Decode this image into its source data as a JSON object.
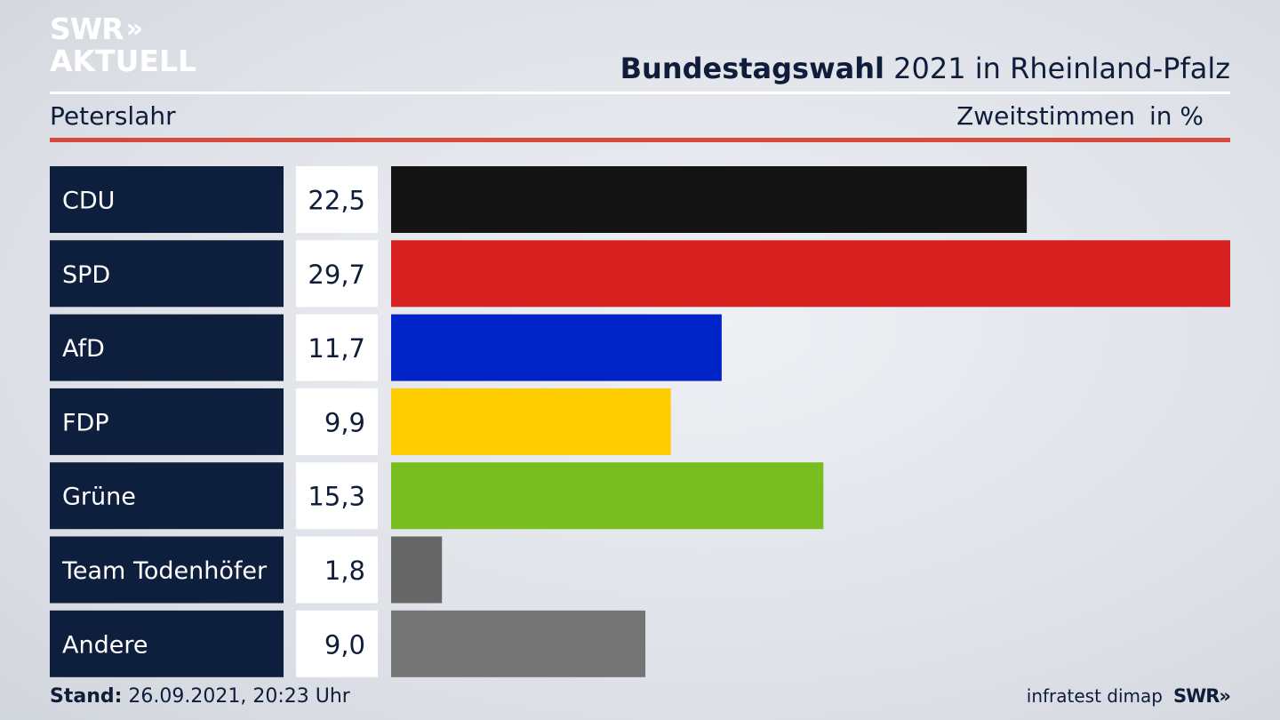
{
  "logo": {
    "line1": "SWR",
    "line1_chevrons": "»",
    "line2": "AKTUELL"
  },
  "header": {
    "title_bold": "Bundestagswahl",
    "title_rest": " 2021 in Rheinland-Pfalz",
    "location": "Peterslahr",
    "vote_type": "Zweitstimmen",
    "unit": "in %"
  },
  "footer": {
    "stand_label": "Stand:",
    "stand_value": " 26.09.2021, 20:23 Uhr",
    "source": "infratest dimap",
    "brand": "SWR»"
  },
  "colors": {
    "label_bg": "#0e1e3d",
    "value_bg": "#ffffff",
    "accent_red": "#d64a3e"
  },
  "chart_data": {
    "type": "bar",
    "orientation": "horizontal",
    "title": "Bundestagswahl 2021 in Rheinland-Pfalz",
    "subtitle": "Peterslahr",
    "xlabel": "Zweitstimmen in %",
    "categories": [
      "CDU",
      "SPD",
      "AfD",
      "FDP",
      "Grüne",
      "Team Todenhöfer",
      "Andere"
    ],
    "values": [
      22.5,
      29.7,
      11.7,
      9.9,
      15.3,
      1.8,
      9.0
    ],
    "value_labels": [
      "22,5",
      "29,7",
      "11,7",
      "9,9",
      "15,3",
      "1,8",
      "9,0"
    ],
    "bar_colors": [
      "#141414",
      "#d72020",
      "#0023c8",
      "#ffcc00",
      "#78be1e",
      "#666666",
      "#747474"
    ],
    "xlim": [
      0,
      29.7
    ],
    "grid": false,
    "legend": "none"
  }
}
